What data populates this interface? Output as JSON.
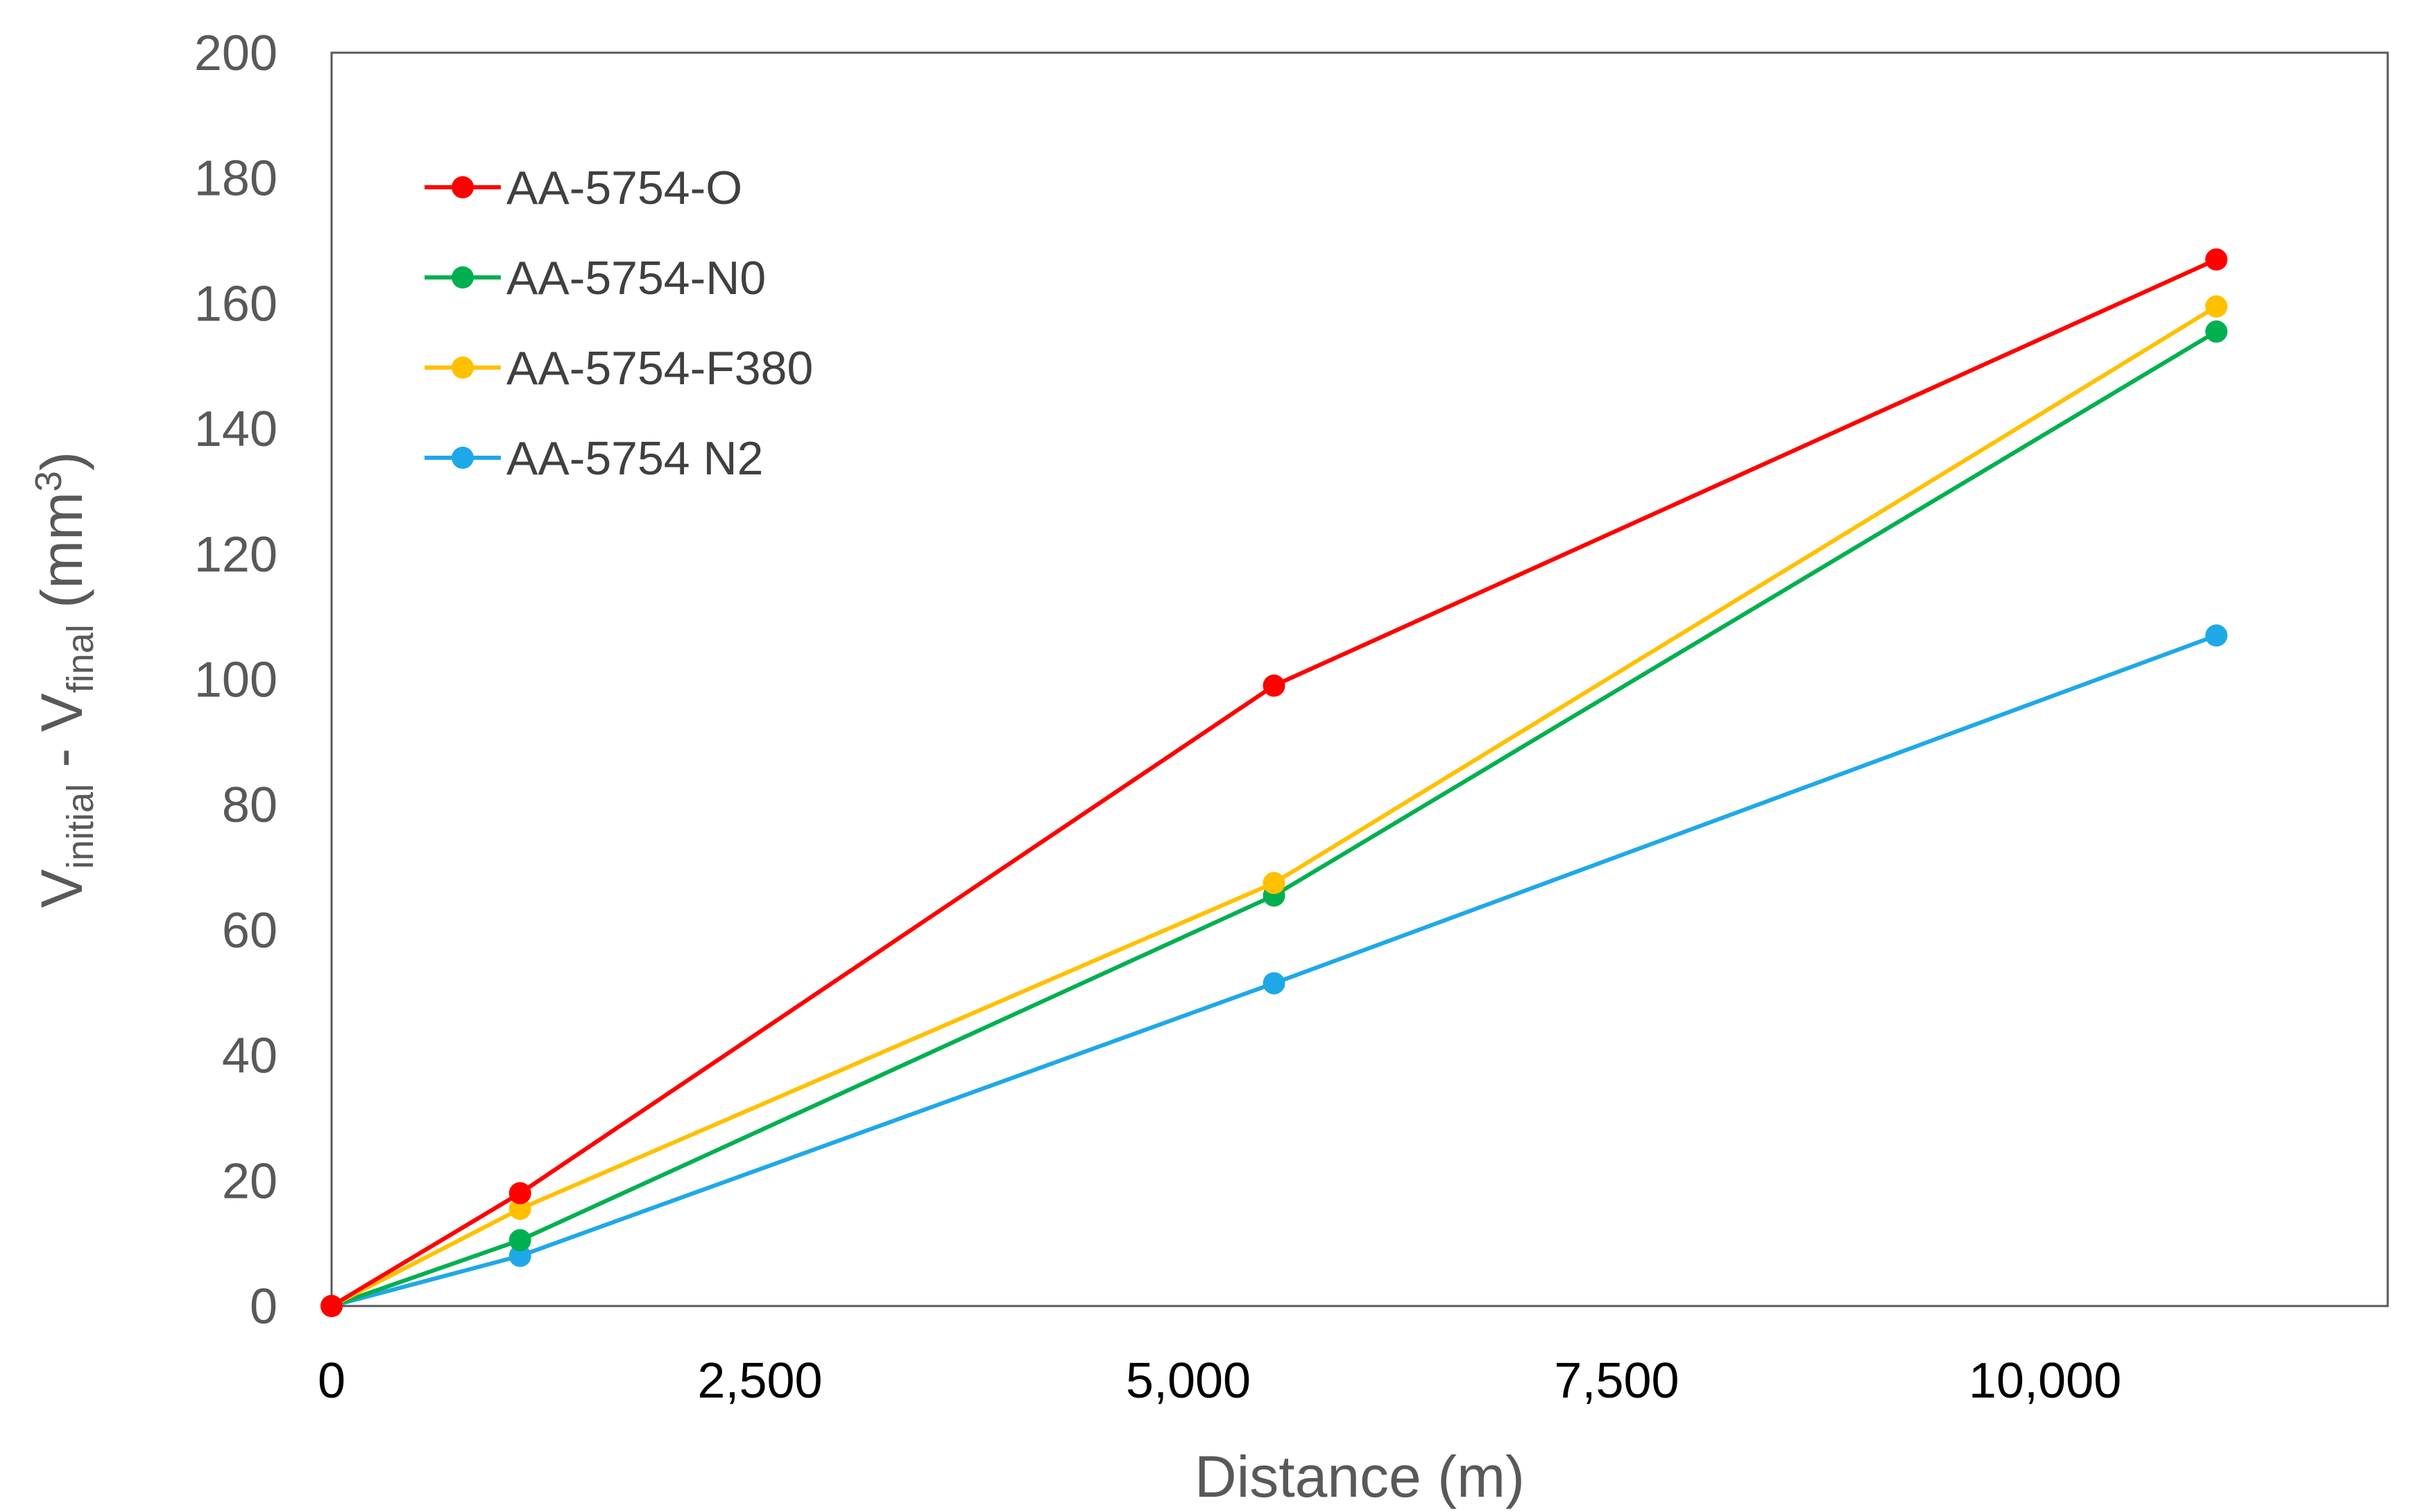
{
  "chart_data": {
    "type": "line",
    "title": "",
    "xlabel": "Distance (m)",
    "ylabel": {
      "base": "V",
      "sub1": "initial",
      "mid": " - V",
      "sub2": "final",
      "unit_open": " (mm",
      "sup": "3",
      "unit_close": ")"
    },
    "xlim": [
      0,
      12000
    ],
    "ylim": [
      0,
      200
    ],
    "x_ticks": [
      0,
      2500,
      5000,
      7500,
      10000
    ],
    "x_tick_labels": [
      "0",
      "2,500",
      "5,000",
      "7,500",
      "10,000"
    ],
    "y_ticks": [
      0,
      20,
      40,
      60,
      80,
      100,
      120,
      140,
      160,
      180,
      200
    ],
    "y_tick_labels": [
      "0",
      "20",
      "40",
      "60",
      "80",
      "100",
      "120",
      "140",
      "160",
      "180",
      "200"
    ],
    "grid": false,
    "legend_position": "top-left",
    "x": [
      0,
      1100,
      5500,
      11000
    ],
    "series": [
      {
        "name": "AA-5754-O",
        "color": "#ff0000",
        "values": [
          0,
          18,
          99,
          167
        ]
      },
      {
        "name": "AA-5754-N0",
        "color": "#00b050",
        "values": [
          0,
          10.5,
          65.5,
          155.5
        ]
      },
      {
        "name": "AA-5754-F380",
        "color": "#ffc000",
        "values": [
          0,
          15.5,
          67.5,
          159.5
        ]
      },
      {
        "name": "AA-5754 N2",
        "color": "#1fa8e8",
        "values": [
          0,
          8,
          51.5,
          107
        ]
      }
    ]
  }
}
